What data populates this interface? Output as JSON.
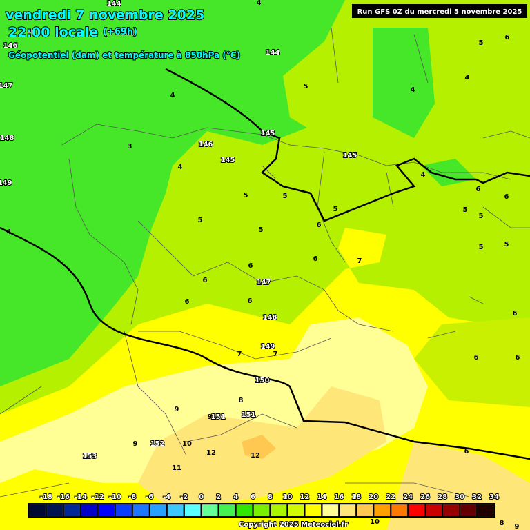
{
  "header": {
    "date": "vendredi 7 novembre 2025",
    "time": "22:00 locale",
    "lead": "(+69h)",
    "subtitle": "Géopotentiel (dam) et température à 850hPa (°C)",
    "run": "Run GFS 0Z du mercredi 5 novembre 2025"
  },
  "map": {
    "labels": [
      144,
      144,
      145,
      145,
      145,
      146,
      147,
      148,
      149,
      150,
      151,
      151,
      152,
      153,
      146,
      147,
      148,
      149,
      4,
      5,
      4,
      4,
      6,
      5,
      4,
      3,
      4,
      5,
      5,
      5,
      5,
      5,
      6,
      4,
      6,
      6,
      5,
      5,
      5,
      5,
      4,
      6,
      6,
      7,
      6,
      6,
      6,
      6,
      7,
      7,
      6,
      6,
      8,
      9,
      9,
      9,
      10,
      12,
      12,
      11,
      6,
      10,
      8,
      9
    ]
  },
  "legend": {
    "ticks": [
      -18,
      -16,
      -14,
      -12,
      -10,
      -8,
      -6,
      -4,
      -2,
      0,
      2,
      4,
      6,
      8,
      10,
      12,
      14,
      16,
      18,
      20,
      22,
      24,
      26,
      28,
      30,
      32,
      34
    ],
    "colors": [
      "#000a32",
      "#001450",
      "#002896",
      "#0000c8",
      "#0000ff",
      "#0a3cff",
      "#1e78ff",
      "#28a0ff",
      "#3cc8ff",
      "#5affff",
      "#64ff96",
      "#46f050",
      "#32e600",
      "#78f000",
      "#aaf500",
      "#d2fa00",
      "#ffff00",
      "#ffff96",
      "#ffe678",
      "#ffc850",
      "#ffa000",
      "#ff7800",
      "#ff0000",
      "#c80000",
      "#960000",
      "#640000",
      "#1e0000"
    ]
  },
  "footer": {
    "copyright": "Copyright 2025 Meteociel.fr"
  }
}
